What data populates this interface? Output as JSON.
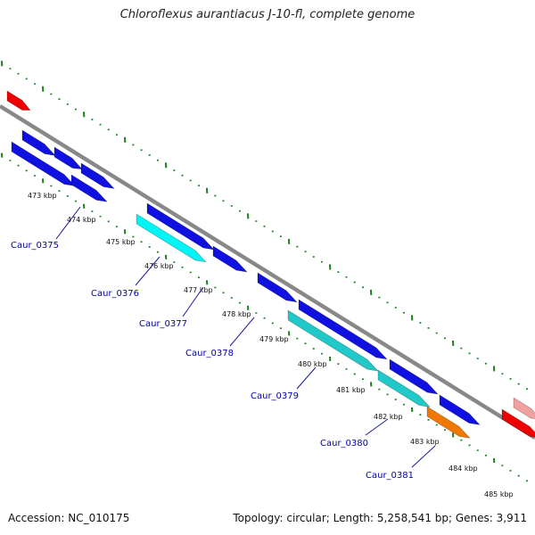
{
  "title": "Chloroflexus aurantiacus J-10-fl, complete genome",
  "footer": {
    "accession_prefix": "Accession: ",
    "accession": "NC_010175",
    "topology_text": "Topology: circular; Length: 5,258,541 bp; Genes: 3,911"
  },
  "colors": {
    "backbone": "#888888",
    "tick": "#1a7f1a",
    "forward_gene": "#1010e0",
    "highlight_gene_light": "#00f5f5",
    "highlight_gene": "#20c8c8",
    "orange_gene": "#f07800",
    "red_gene": "#ee0000",
    "pink_gene": "#f0a0a0",
    "label_color": "#0000aa",
    "label_line": "#1a1a9a"
  },
  "scale_labels": [
    "473 kbp",
    "474 kbp",
    "475 kbp",
    "476 kbp",
    "477 kbp",
    "478 kbp",
    "479 kbp",
    "480 kbp",
    "481 kbp",
    "482 kbp",
    "483 kbp",
    "484 kbp",
    "485 kbp"
  ],
  "gene_labels": [
    "Caur_0375",
    "Caur_0376",
    "Caur_0377",
    "Caur_0378",
    "Caur_0379",
    "Caur_0380",
    "Caur_0381"
  ]
}
